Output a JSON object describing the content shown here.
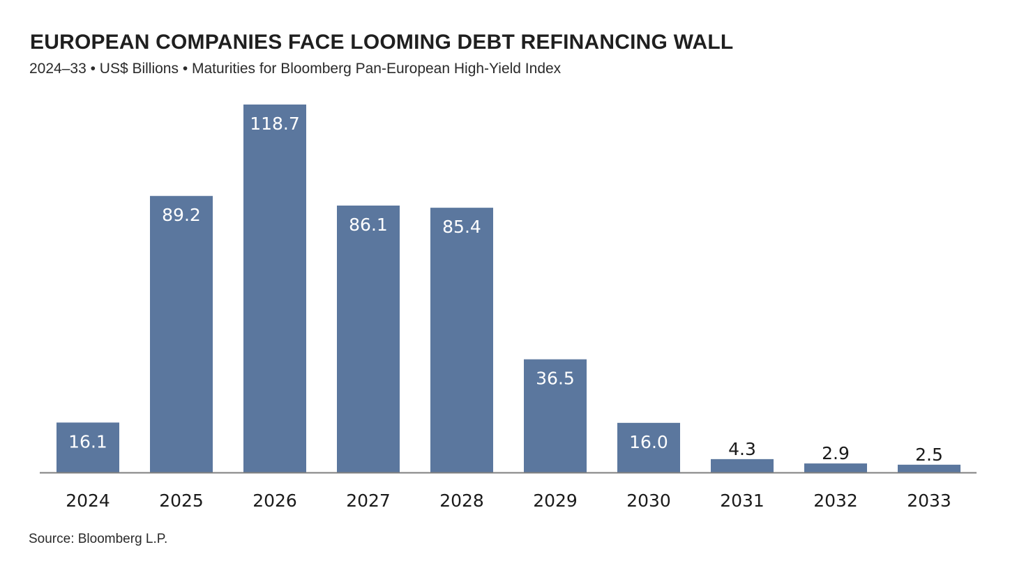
{
  "header": {
    "title": "EUROPEAN COMPANIES FACE LOOMING DEBT REFINANCING WALL",
    "subtitle": "2024–33 • US$ Billions • Maturities for Bloomberg Pan-European High-Yield Index"
  },
  "footer": {
    "source": "Source: Bloomberg L.P."
  },
  "colors": {
    "bar": "#5b779e",
    "axis": "#7f7f7f"
  },
  "chart_data": {
    "type": "bar",
    "title": "EUROPEAN COMPANIES FACE LOOMING DEBT REFINANCING WALL",
    "subtitle": "2024–33 • US$ Billions • Maturities for Bloomberg Pan-European High-Yield Index",
    "categories": [
      "2024",
      "2025",
      "2026",
      "2027",
      "2028",
      "2029",
      "2030",
      "2031",
      "2032",
      "2033"
    ],
    "values": [
      16.1,
      89.2,
      118.7,
      86.1,
      85.4,
      36.5,
      16.0,
      4.3,
      2.9,
      2.5
    ],
    "data_labels": [
      "16.1",
      "89.2",
      "118.7",
      "86.1",
      "85.4",
      "36.5",
      "16.0",
      "4.3",
      "2.9",
      "2.5"
    ],
    "xlabel": "",
    "ylabel": "",
    "ylim": [
      0,
      118.7
    ],
    "grid": false,
    "legend": "none"
  }
}
